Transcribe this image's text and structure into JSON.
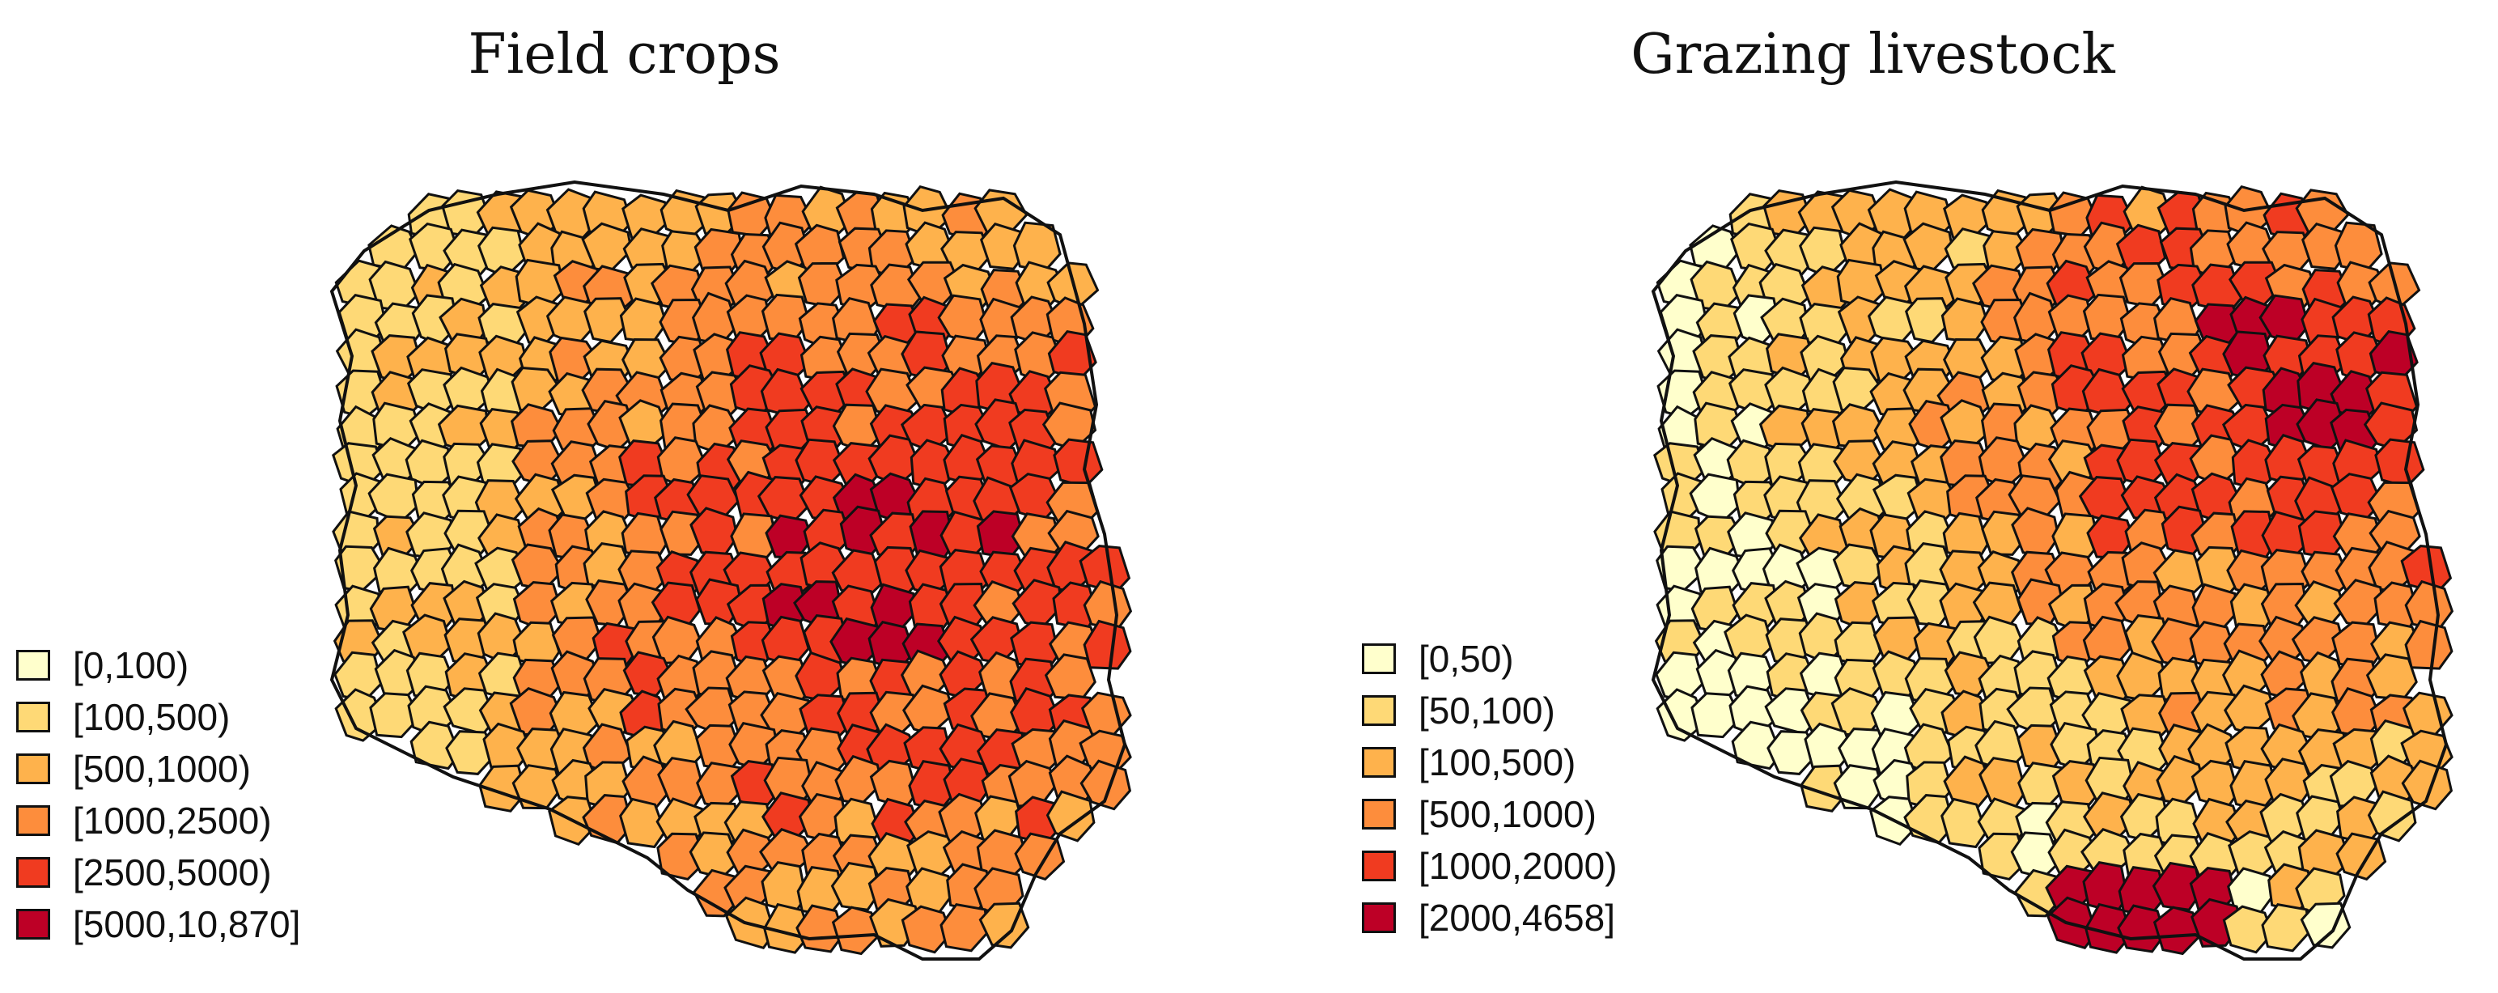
{
  "panels": [
    {
      "title": "Field crops",
      "legend": [
        {
          "label": "[0,100)",
          "color": "#FFFFCC"
        },
        {
          "label": "[100,500)",
          "color": "#FED976"
        },
        {
          "label": "[500,1000)",
          "color": "#FEB24C"
        },
        {
          "label": "[1000,2500)",
          "color": "#FD8D3C"
        },
        {
          "label": "[2500,5000)",
          "color": "#F03B20"
        },
        {
          "label": "[5000,10,870]",
          "color": "#BD0026"
        }
      ]
    },
    {
      "title": "Grazing livestock",
      "legend": [
        {
          "label": "[0,50)",
          "color": "#FFFFCC"
        },
        {
          "label": "[50,100)",
          "color": "#FED976"
        },
        {
          "label": "[100,500)",
          "color": "#FEB24C"
        },
        {
          "label": "[500,1000)",
          "color": "#FD8D3C"
        },
        {
          "label": "[1000,2000)",
          "color": "#F03B20"
        },
        {
          "label": "[2000,4658]",
          "color": "#BD0026"
        }
      ]
    }
  ]
}
